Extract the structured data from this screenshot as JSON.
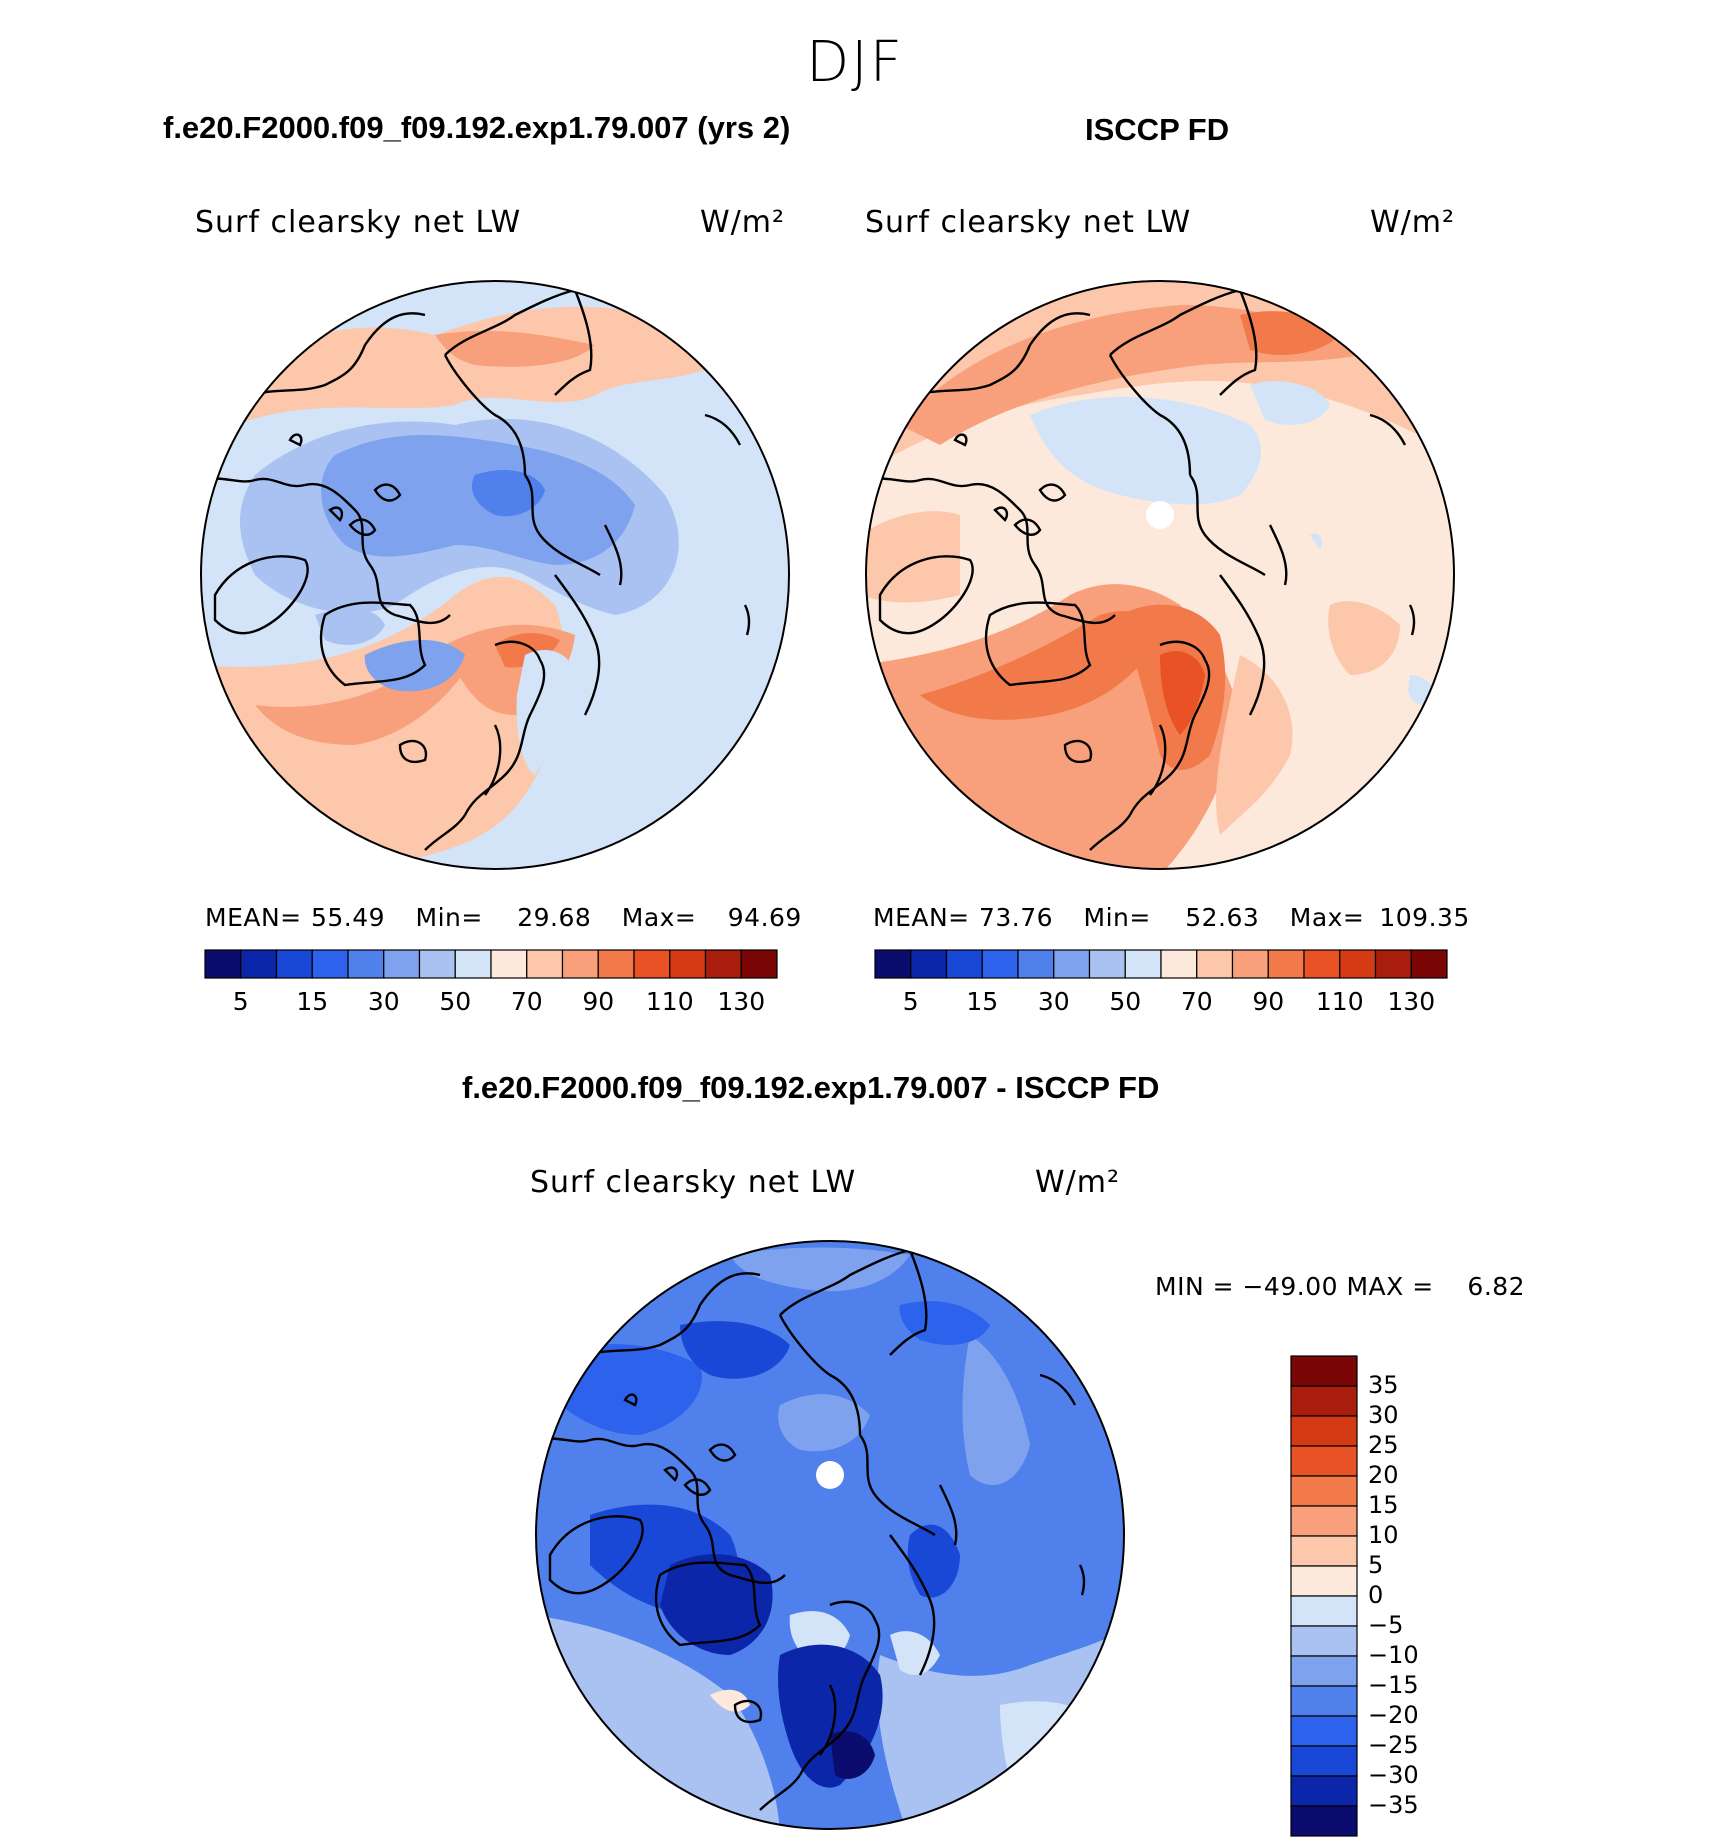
{
  "figure": {
    "season": "DJF",
    "model_title": "f.e20.F2000.f09_f09.192.exp1.79.007 (yrs 2)",
    "obs_title": "ISCCP FD",
    "diff_title": "f.e20.F2000.f09_f09.192.exp1.79.007 - ISCCP FD"
  },
  "panels": {
    "model": {
      "variable": "Surf clearsky net LW",
      "units": "W/m²",
      "stats": {
        "mean_label": "MEAN=",
        "mean": "55.49",
        "min_label": "Min=",
        "min": "29.68",
        "max_label": "Max=",
        "max": "94.69"
      }
    },
    "obs": {
      "variable": "Surf clearsky net LW",
      "units": "W/m²",
      "stats": {
        "mean_label": "MEAN=",
        "mean": "73.76",
        "min_label": "Min=",
        "min": "52.63",
        "max_label": "Max=",
        "max": "109.35"
      }
    },
    "diff": {
      "variable": "Surf clearsky net LW",
      "units": "W/m²",
      "minmax": "MIN = −49.00 MAX =    6.82"
    }
  },
  "colorbar_abs": {
    "colors": [
      "#0c0c6e",
      "#0b26a8",
      "#1a48d6",
      "#2c62ec",
      "#4f80ec",
      "#7ea2ee",
      "#a9c2f2",
      "#d3e4f8",
      "#fde9dc",
      "#fcc7ab",
      "#f7a07b",
      "#f27a4a",
      "#e95225",
      "#d43a14",
      "#a91d0c",
      "#7a0606"
    ],
    "tick_labels": [
      "5",
      "15",
      "30",
      "50",
      "70",
      "90",
      "110",
      "130"
    ]
  },
  "colorbar_diff": {
    "colors": [
      "#7a0606",
      "#a91d0c",
      "#d43a14",
      "#e95225",
      "#f27a4a",
      "#f7a07b",
      "#fcc7ab",
      "#fde9dc",
      "#d3e4f8",
      "#a9c2f2",
      "#7ea2ee",
      "#4f80ec",
      "#2c62ec",
      "#1a48d6",
      "#0b26a8",
      "#0c0c6e"
    ],
    "tick_labels": [
      "35",
      "30",
      "25",
      "20",
      "15",
      "10",
      "5",
      "0",
      "−5",
      "−10",
      "−15",
      "−20",
      "−25",
      "−30",
      "−35"
    ]
  },
  "map_colors": {
    "land_line": "#000000",
    "pole_hole": "#ffffff"
  }
}
